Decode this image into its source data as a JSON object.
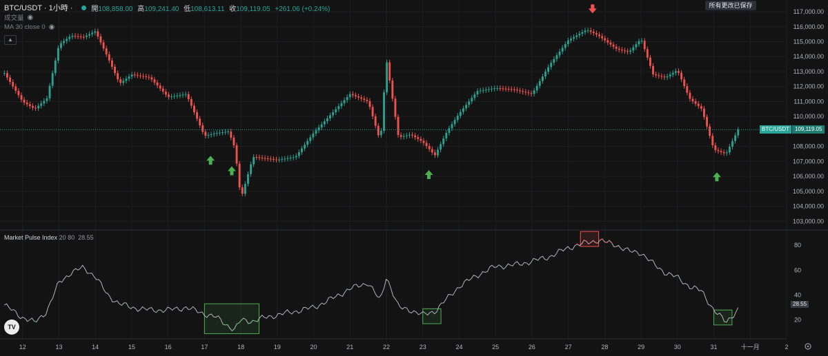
{
  "header": {
    "symbol_title": "BTC/USDT · 1小時 ·",
    "open_label": "開",
    "open": "108,858.00",
    "high_label": "高",
    "high": "109,241.40",
    "low_label": "低",
    "low": "108,613.11",
    "close_label": "收",
    "close": "109,119.05",
    "change": "+261.06 (+0.24%)",
    "volume_label": "成交量",
    "ma_label": "MA 30 close 0",
    "saved_message": "所有更改已保存"
  },
  "price_axis": {
    "tick_labels": [
      "117,000.00",
      "116,000.00",
      "115,000.00",
      "114,000.00",
      "113,000.00",
      "112,000.00",
      "111,000.00",
      "110,000.00",
      "108,000.00",
      "107,000.00",
      "106,000.00",
      "105,000.00",
      "104,000.00",
      "103,000.00"
    ],
    "current_symbol": "BTC/USDT",
    "current_price": "109,119.05"
  },
  "indicator": {
    "name": "Market Pulse Index",
    "params": "20 80",
    "value": "28.55",
    "tick_labels": [
      "80",
      "60",
      "40",
      "20"
    ],
    "current_value_label": "28.55"
  },
  "time_axis": {
    "labels": [
      "12",
      "13",
      "14",
      "15",
      "16",
      "17",
      "18",
      "19",
      "20",
      "21",
      "22",
      "23",
      "24",
      "25",
      "26",
      "27",
      "28",
      "29",
      "30",
      "31",
      "十一月",
      "2"
    ]
  },
  "colors": {
    "background": "#131313",
    "up": "#26a69a",
    "up_candle": "#2ba18f",
    "down": "#ef5350",
    "indicator_line": "#b2b5be",
    "oversold": "#4caf50",
    "overbought": "#ef5350",
    "grid": "#1e1f23"
  },
  "icons": {
    "visibility": "eye-icon",
    "buy_signal": "green-up-arrow-icon",
    "sell_signal": "red-down-arrow-icon",
    "collapse": "chevron-up-icon",
    "settings": "gear-icon",
    "logo": "tradingview-logo-icon"
  },
  "chart_data": [
    {
      "type": "candlestick",
      "title": "BTC/USDT · 1小時",
      "y_unit": "USDT",
      "ylim": [
        102600,
        117600
      ],
      "x_range": [
        "Oct 11",
        "Nov 2"
      ],
      "grid": false,
      "current_price": 109119.05,
      "series": [
        {
          "name": "BTC/USDT",
          "x": [
            "Oct 11 12:00",
            "Oct 12 00:00",
            "Oct 12 08:00",
            "Oct 12 16:00",
            "Oct 13 00:00",
            "Oct 13 08:00",
            "Oct 13 16:00",
            "Oct 14 00:00",
            "Oct 14 08:00",
            "Oct 14 16:00",
            "Oct 15 00:00",
            "Oct 15 12:00",
            "Oct 16 00:00",
            "Oct 16 12:00",
            "Oct 17 00:00",
            "Oct 17 08:00",
            "Oct 17 16:00",
            "Oct 17 20:00",
            "Oct 18 00:00",
            "Oct 18 08:00",
            "Oct 18 16:00",
            "Oct 19 00:00",
            "Oct 19 12:00",
            "Oct 20 00:00",
            "Oct 20 12:00",
            "Oct 21 00:00",
            "Oct 21 12:00",
            "Oct 21 20:00",
            "Oct 22 00:00",
            "Oct 22 08:00",
            "Oct 22 16:00",
            "Oct 23 00:00",
            "Oct 23 08:00",
            "Oct 23 16:00",
            "Oct 24 00:00",
            "Oct 24 12:00",
            "Oct 25 00:00",
            "Oct 25 12:00",
            "Oct 26 00:00",
            "Oct 26 12:00",
            "Oct 27 00:00",
            "Oct 27 12:00",
            "Oct 27 20:00",
            "Oct 28 08:00",
            "Oct 28 16:00",
            "Oct 29 00:00",
            "Oct 29 08:00",
            "Oct 29 16:00",
            "Oct 30 00:00",
            "Oct 30 08:00",
            "Oct 30 16:00",
            "Oct 31 00:00",
            "Oct 31 08:00",
            "Oct 31 16:00"
          ],
          "close": [
            112900,
            111000,
            110500,
            111200,
            114800,
            115400,
            115300,
            115700,
            114000,
            112200,
            112800,
            112600,
            111300,
            111500,
            108700,
            108900,
            109000,
            107900,
            104500,
            107300,
            107200,
            107100,
            107300,
            108900,
            110200,
            111500,
            111000,
            108300,
            113800,
            108600,
            108800,
            108300,
            107400,
            109000,
            110200,
            111700,
            111900,
            111800,
            111500,
            113500,
            115100,
            115800,
            115400,
            114500,
            114300,
            115200,
            112800,
            112600,
            113100,
            111200,
            110500,
            107800,
            107500,
            109119.05
          ],
          "high": [
            113400,
            112000,
            111600,
            112400,
            115600,
            116000,
            115900,
            116000,
            115800,
            114300,
            113500,
            113100,
            112100,
            112200,
            111400,
            109600,
            109400,
            109400,
            108400,
            107700,
            107900,
            107600,
            107700,
            109400,
            110900,
            111900,
            112000,
            111600,
            114000,
            112200,
            109300,
            109200,
            108600,
            109500,
            110700,
            112100,
            112300,
            112200,
            112200,
            114100,
            115500,
            116300,
            116100,
            115500,
            115000,
            116000,
            115900,
            113600,
            113600,
            112100,
            111200,
            110500,
            108300,
            110200
          ],
          "low": [
            111800,
            110300,
            109900,
            110600,
            110600,
            114500,
            114600,
            114500,
            112500,
            111000,
            111500,
            111600,
            110700,
            110900,
            108400,
            108000,
            107600,
            107400,
            103300,
            104800,
            106600,
            106600,
            106700,
            106700,
            108500,
            110300,
            109900,
            108000,
            107500,
            108000,
            107900,
            107500,
            107000,
            107800,
            109300,
            110500,
            110700,
            110900,
            110800,
            111100,
            114100,
            114700,
            114600,
            113800,
            113500,
            114000,
            112500,
            112000,
            112300,
            110800,
            109600,
            107400,
            106200,
            108000
          ]
        }
      ]
    },
    {
      "type": "line",
      "title": "Market Pulse Index 20 80",
      "ylim": [
        6,
        90
      ],
      "x_range": [
        "Oct 11",
        "Nov 2"
      ],
      "current_value": 28.55,
      "thresholds": [
        20,
        80
      ],
      "series": [
        {
          "name": "Market Pulse Index",
          "x": [
            "Oct 11 12:00",
            "Oct 12 00:00",
            "Oct 12 08:00",
            "Oct 12 16:00",
            "Oct 13 00:00",
            "Oct 13 08:00",
            "Oct 13 16:00",
            "Oct 14 00:00",
            "Oct 14 08:00",
            "Oct 14 16:00",
            "Oct 15 00:00",
            "Oct 15 12:00",
            "Oct 16 00:00",
            "Oct 16 12:00",
            "Oct 17 00:00",
            "Oct 17 08:00",
            "Oct 17 16:00",
            "Oct 17 20:00",
            "Oct 18 00:00",
            "Oct 18 08:00",
            "Oct 18 16:00",
            "Oct 19 00:00",
            "Oct 19 12:00",
            "Oct 20 00:00",
            "Oct 20 12:00",
            "Oct 21 00:00",
            "Oct 21 12:00",
            "Oct 21 20:00",
            "Oct 22 00:00",
            "Oct 22 08:00",
            "Oct 22 16:00",
            "Oct 23 00:00",
            "Oct 23 08:00",
            "Oct 23 16:00",
            "Oct 24 00:00",
            "Oct 24 12:00",
            "Oct 25 00:00",
            "Oct 25 12:00",
            "Oct 26 00:00",
            "Oct 26 12:00",
            "Oct 27 00:00",
            "Oct 27 12:00",
            "Oct 27 20:00",
            "Oct 28 08:00",
            "Oct 28 16:00",
            "Oct 29 00:00",
            "Oct 29 08:00",
            "Oct 29 16:00",
            "Oct 30 00:00",
            "Oct 30 08:00",
            "Oct 30 16:00",
            "Oct 31 00:00",
            "Oct 31 08:00",
            "Oct 31 16:00"
          ],
          "values": [
            32,
            22,
            18,
            27,
            50,
            58,
            62,
            55,
            40,
            33,
            30,
            28,
            28,
            30,
            25,
            22,
            15,
            12,
            20,
            19,
            22,
            24,
            27,
            30,
            37,
            45,
            50,
            35,
            55,
            30,
            28,
            24,
            27,
            37,
            47,
            56,
            63,
            64,
            67,
            71,
            78,
            82,
            84,
            80,
            75,
            74,
            65,
            58,
            54,
            47,
            43,
            28,
            18,
            28.55
          ]
        }
      ],
      "highlight_zones": [
        {
          "kind": "oversold",
          "x_from": "Oct 17 00:00",
          "x_to": "Oct 18 12:00",
          "y_from": 9,
          "y_to": 33
        },
        {
          "kind": "oversold",
          "x_from": "Oct 23 00:00",
          "x_to": "Oct 23 12:00",
          "y_from": 17,
          "y_to": 29
        },
        {
          "kind": "overbought",
          "x_from": "Oct 27 08:00",
          "x_to": "Oct 27 20:00",
          "y_from": 79,
          "y_to": 91
        },
        {
          "kind": "oversold",
          "x_from": "Oct 31 00:00",
          "x_to": "Oct 31 12:00",
          "y_from": 16,
          "y_to": 28
        }
      ]
    }
  ],
  "signals": [
    {
      "kind": "buy",
      "x": "Oct 17 04:00"
    },
    {
      "kind": "buy",
      "x": "Oct 17 18:00"
    },
    {
      "kind": "buy",
      "x": "Oct 23 04:00"
    },
    {
      "kind": "sell",
      "x": "Oct 27 16:00"
    },
    {
      "kind": "buy",
      "x": "Oct 31 02:00"
    }
  ]
}
